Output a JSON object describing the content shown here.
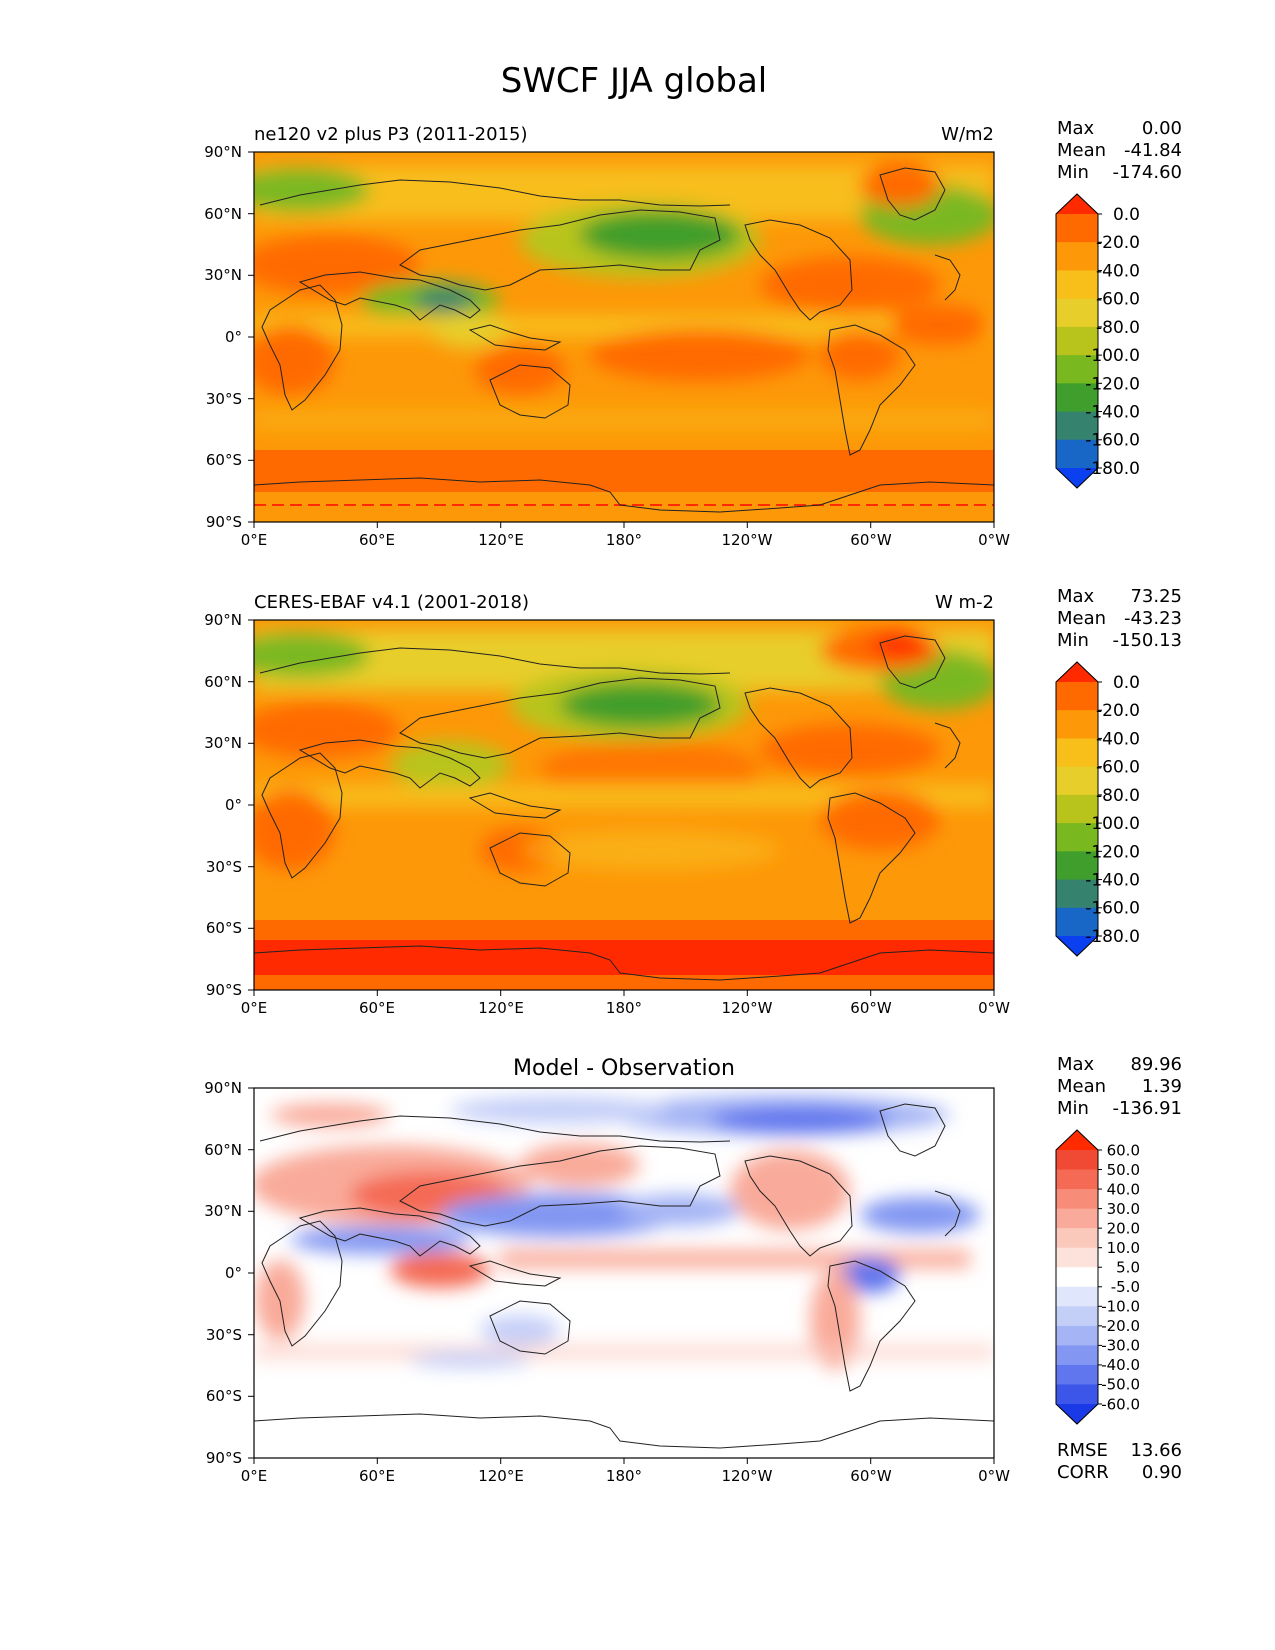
{
  "figure": {
    "title": "SWCF JJA global"
  },
  "panels": [
    {
      "id": "model",
      "title_left": "ne120 v2 plus P3 (2011-2015)",
      "title_center": "",
      "units": "W/m2",
      "stats": [
        {
          "label": "Max",
          "value": "0.00"
        },
        {
          "label": "Mean",
          "value": "-41.84"
        },
        {
          "label": "Min",
          "value": "-174.60"
        }
      ],
      "colorbar": {
        "labels": [
          "0.0",
          "-20.0",
          "-40.0",
          "-60.0",
          "-80.0",
          "-100.0",
          "-120.0",
          "-140.0",
          "-160.0",
          "-180.0"
        ],
        "colors": [
          "#ff2a00",
          "#ff6a00",
          "#fd9808",
          "#f8be1a",
          "#e8ce2a",
          "#b8c41c",
          "#7ab820",
          "#3f9e2c",
          "#35826e",
          "#1866c6",
          "#0a40f0"
        ]
      }
    },
    {
      "id": "obs",
      "title_left": "CERES-EBAF v4.1 (2001-2018)",
      "title_center": "",
      "units": "W m-2",
      "stats": [
        {
          "label": "Max",
          "value": "73.25"
        },
        {
          "label": "Mean",
          "value": "-43.23"
        },
        {
          "label": "Min",
          "value": "-150.13"
        }
      ],
      "colorbar": {
        "labels": [
          "0.0",
          "-20.0",
          "-40.0",
          "-60.0",
          "-80.0",
          "-100.0",
          "-120.0",
          "-140.0",
          "-160.0",
          "-180.0"
        ],
        "colors": [
          "#ff2a00",
          "#ff6a00",
          "#fd9808",
          "#f8be1a",
          "#e8ce2a",
          "#b8c41c",
          "#7ab820",
          "#3f9e2c",
          "#35826e",
          "#1866c6",
          "#0a40f0"
        ]
      }
    },
    {
      "id": "diff",
      "title_left": "",
      "title_center": "Model - Observation",
      "units": "",
      "stats": [
        {
          "label": "Max",
          "value": "89.96"
        },
        {
          "label": "Mean",
          "value": "1.39"
        },
        {
          "label": "Min",
          "value": "-136.91"
        }
      ],
      "extra_stats": [
        {
          "label": "RMSE",
          "value": "13.66"
        },
        {
          "label": "CORR",
          "value": "0.90"
        }
      ],
      "colorbar": {
        "labels": [
          "60.0",
          "50.0",
          "40.0",
          "30.0",
          "20.0",
          "10.0",
          "5.0",
          "-5.0",
          "-10.0",
          "-20.0",
          "-30.0",
          "-40.0",
          "-50.0",
          "-60.0"
        ],
        "colors": [
          "#ff2a00",
          "#f04a34",
          "#f46a54",
          "#f78c78",
          "#f9aa9a",
          "#fbc8bc",
          "#fde2dc",
          "#ffffff",
          "#e0e6fb",
          "#c4cff8",
          "#a4b4f5",
          "#8296f2",
          "#6076ee",
          "#3c56ea",
          "#1a3ae8"
        ]
      }
    }
  ],
  "axes": {
    "lat_ticks": [
      "90°N",
      "60°N",
      "30°N",
      "0°",
      "30°S",
      "60°S",
      "90°S"
    ],
    "lon_ticks": [
      "0°E",
      "60°E",
      "120°E",
      "180°",
      "120°W",
      "60°W",
      "0°W"
    ]
  }
}
